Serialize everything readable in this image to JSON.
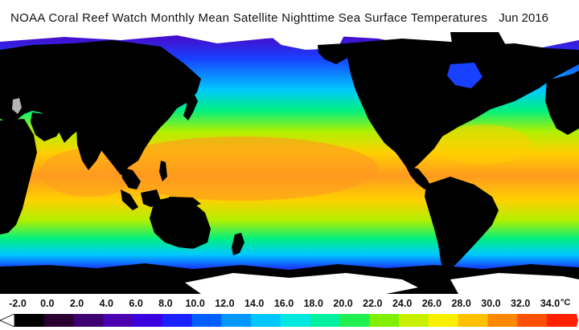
{
  "header": {
    "title": "NOAA Coral Reef Watch Monthly Mean Satellite Nighttime Sea Surface Temperatures",
    "date": "Jun 2016"
  },
  "colorbar": {
    "unit": "°C",
    "ticks": [
      "-2.0",
      "0.0",
      "2.0",
      "4.0",
      "6.0",
      "8.0",
      "10.0",
      "12.0",
      "14.0",
      "16.0",
      "18.0",
      "20.0",
      "22.0",
      "24.0",
      "26.0",
      "28.0",
      "30.0",
      "32.0",
      "34.0"
    ],
    "min": -2.0,
    "max": 34.0,
    "colors": [
      "#000000",
      "#2a0033",
      "#3d0070",
      "#4a00b0",
      "#3a00e0",
      "#1a20ff",
      "#0060ff",
      "#0098ff",
      "#00c8ff",
      "#00e8e0",
      "#00f0a0",
      "#20f050",
      "#80f000",
      "#c8f000",
      "#f8f000",
      "#ffc000",
      "#ff8800",
      "#ff5000",
      "#ff2000"
    ]
  },
  "map": {
    "legend_role": "sea surface temperature",
    "colors": {
      "land": "#000000",
      "ice": "#ffffff",
      "polar": "#5000c0",
      "cold": "#1840ff",
      "cool": "#00c8ff",
      "mild": "#00f080",
      "warm": "#b0f000",
      "hot": "#ffd000",
      "hottest": "#ff9a20"
    }
  }
}
